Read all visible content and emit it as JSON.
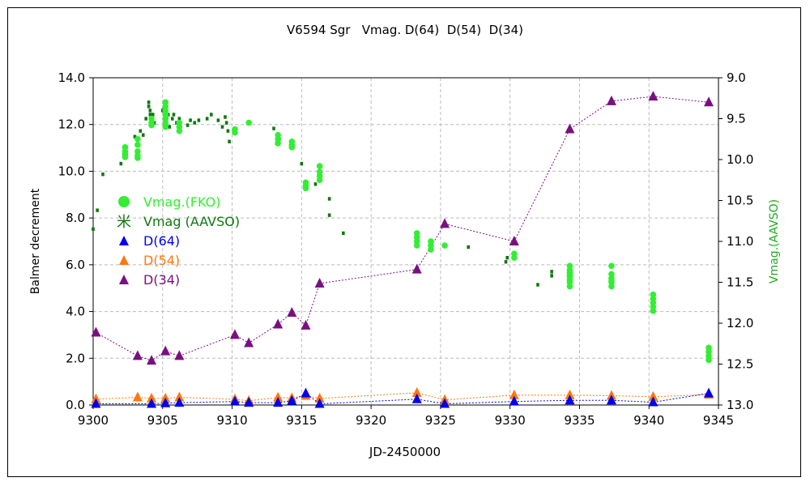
{
  "chart_data": {
    "type": "scatter",
    "title": "V6594 Sgr   Vmag. D(64)  D(54)  D(34)",
    "xlabel": "JD-2450000",
    "ylabel": "Balmer decrement",
    "y2label": "Vmag.(AAVSO)",
    "xlim": [
      9300,
      9345
    ],
    "ylim": [
      0,
      14
    ],
    "y2lim": [
      9.0,
      13.0
    ],
    "y2_inverted": true,
    "grid": true,
    "legend_position": "left-middle",
    "xticks": [
      "9300",
      "9305",
      "9310",
      "9315",
      "9320",
      "9325",
      "9330",
      "9335",
      "9340",
      "9345"
    ],
    "yticks": [
      "0.0",
      "2.0",
      "4.0",
      "6.0",
      "8.0",
      "10.0",
      "12.0",
      "14.0"
    ],
    "y2ticks": [
      "9.0",
      "9.5",
      "10.0",
      "10.5",
      "11.0",
      "11.5",
      "12.0",
      "12.5",
      "13.0"
    ],
    "legend": [
      {
        "label": "Vmag.(FKO)",
        "color": "#33ee33",
        "marker": "circle"
      },
      {
        "label": "Vmag (AAVSO)",
        "color": "#117711",
        "marker": "asterisk",
        "glyph": "米"
      },
      {
        "label": "D(64)",
        "color": "#0000ee",
        "marker": "triangle"
      },
      {
        "label": "D(54)",
        "color": "#ff7711",
        "marker": "triangle"
      },
      {
        "label": "D(34)",
        "color": "#7a1080",
        "marker": "triangle"
      }
    ],
    "series": [
      {
        "name": "D(34)",
        "axis": "left",
        "color": "#7a1080",
        "marker": "triangle",
        "line": true,
        "x": [
          9300.2,
          9303.2,
          9304.2,
          9305.2,
          9306.2,
          9310.2,
          9311.2,
          9313.3,
          9314.3,
          9315.3,
          9316.3,
          9323.3,
          9325.3,
          9330.3,
          9334.3,
          9337.3,
          9340.3,
          9344.3
        ],
        "y": [
          3.1,
          2.1,
          1.9,
          2.3,
          2.1,
          3.0,
          2.65,
          3.45,
          3.95,
          3.4,
          5.2,
          5.8,
          7.75,
          7.0,
          11.8,
          13.0,
          13.2,
          12.95
        ]
      },
      {
        "name": "D(54)",
        "axis": "left",
        "color": "#ff7711",
        "marker": "triangle",
        "line": true,
        "x": [
          9300.2,
          9303.2,
          9304.2,
          9305.2,
          9306.2,
          9310.2,
          9311.2,
          9313.3,
          9314.3,
          9315.3,
          9316.3,
          9323.3,
          9325.3,
          9330.3,
          9334.3,
          9337.3,
          9340.3,
          9344.3
        ],
        "y": [
          0.25,
          0.33,
          0.28,
          0.28,
          0.33,
          0.25,
          0.18,
          0.32,
          0.3,
          0.4,
          0.28,
          0.52,
          0.22,
          0.42,
          0.42,
          0.4,
          0.35,
          0.45
        ]
      },
      {
        "name": "D(64)",
        "axis": "left",
        "color": "#0000ee",
        "marker": "triangle",
        "line": true,
        "x": [
          9300.2,
          9304.2,
          9305.2,
          9306.2,
          9310.2,
          9311.2,
          9313.3,
          9314.3,
          9315.3,
          9316.3,
          9323.3,
          9325.3,
          9330.3,
          9334.3,
          9337.3,
          9340.3,
          9344.3
        ],
        "y": [
          0.05,
          0.05,
          0.08,
          0.1,
          0.15,
          0.1,
          0.1,
          0.18,
          0.5,
          0.05,
          0.25,
          0.05,
          0.15,
          0.2,
          0.2,
          0.12,
          0.5
        ]
      },
      {
        "name": "Vmag (AAVSO)",
        "axis": "right",
        "color": "#117711",
        "marker": "asterisk",
        "line": false,
        "x": [
          9300.0,
          9300.3,
          9300.7,
          9302.0,
          9302.2,
          9302.4,
          9303.0,
          9303.4,
          9303.6,
          9303.8,
          9304.0,
          9304.0,
          9304.1,
          9304.1,
          9304.2,
          9304.3,
          9304.4,
          9305.0,
          9305.1,
          9305.2,
          9305.3,
          9305.4,
          9305.5,
          9305.7,
          9305.8,
          9306.0,
          9306.2,
          9306.8,
          9307.0,
          9307.3,
          9307.6,
          9308.2,
          9308.5,
          9309.0,
          9309.3,
          9309.5,
          9309.6,
          9309.7,
          9309.8,
          9313.0,
          9313.2,
          9313.4,
          9315.0,
          9316.0,
          9317.0,
          9317.0,
          9318.0,
          9329.7,
          9329.8,
          9327.0,
          9332.0,
          9333.0,
          9333.0
        ],
        "y": [
          10.85,
          10.62,
          10.18,
          10.05,
          9.95,
          9.93,
          9.72,
          9.65,
          9.7,
          9.5,
          9.3,
          9.35,
          9.4,
          9.45,
          9.5,
          9.45,
          9.55,
          9.4,
          9.38,
          9.42,
          9.5,
          9.45,
          9.6,
          9.5,
          9.45,
          9.55,
          9.5,
          9.58,
          9.52,
          9.55,
          9.52,
          9.5,
          9.45,
          9.52,
          9.6,
          9.48,
          9.55,
          9.65,
          9.78,
          9.62,
          9.8,
          9.75,
          10.05,
          10.3,
          10.48,
          10.68,
          10.9,
          11.25,
          11.2,
          11.07,
          11.53,
          11.37,
          11.42
        ]
      },
      {
        "name": "Vmag.(FKO)",
        "axis": "right",
        "color": "#33ee33",
        "marker": "circle",
        "line": false,
        "x": [
          9302.3,
          9302.3,
          9302.3,
          9302.3,
          9303.2,
          9303.2,
          9303.2,
          9303.2,
          9303.2,
          9304.2,
          9304.2,
          9304.2,
          9305.2,
          9305.2,
          9305.2,
          9305.2,
          9305.2,
          9305.2,
          9305.2,
          9306.2,
          9306.2,
          9306.2,
          9310.2,
          9310.2,
          9311.2,
          9313.3,
          9313.3,
          9313.3,
          9314.3,
          9314.3,
          9314.3,
          9315.3,
          9315.3,
          9315.3,
          9316.3,
          9316.3,
          9316.3,
          9316.3,
          9323.3,
          9323.3,
          9323.3,
          9323.3,
          9324.3,
          9324.3,
          9324.3,
          9325.3,
          9330.3,
          9330.3,
          9334.3,
          9334.3,
          9334.3,
          9334.3,
          9334.3,
          9334.3,
          9334.3,
          9334.3,
          9337.3,
          9337.3,
          9337.3,
          9337.3,
          9337.3,
          9337.3,
          9340.3,
          9340.3,
          9340.3,
          9340.3,
          9340.3,
          9344.3,
          9344.3,
          9344.3,
          9344.3
        ],
        "y": [
          9.85,
          9.9,
          9.93,
          9.97,
          9.75,
          9.82,
          9.9,
          9.95,
          9.98,
          9.5,
          9.55,
          9.58,
          9.3,
          9.35,
          9.4,
          9.45,
          9.5,
          9.55,
          9.6,
          9.55,
          9.6,
          9.65,
          9.63,
          9.67,
          9.55,
          9.7,
          9.75,
          9.8,
          9.78,
          9.82,
          9.85,
          10.28,
          10.32,
          10.35,
          10.08,
          10.15,
          10.2,
          10.25,
          10.9,
          10.95,
          11.0,
          11.05,
          11.0,
          11.05,
          11.1,
          11.05,
          11.15,
          11.2,
          11.3,
          11.35,
          11.38,
          11.4,
          11.43,
          11.47,
          11.5,
          11.55,
          11.3,
          11.4,
          11.45,
          11.48,
          11.5,
          11.55,
          11.65,
          11.7,
          11.75,
          11.8,
          11.85,
          12.3,
          12.35,
          12.4,
          12.45
        ]
      }
    ]
  }
}
